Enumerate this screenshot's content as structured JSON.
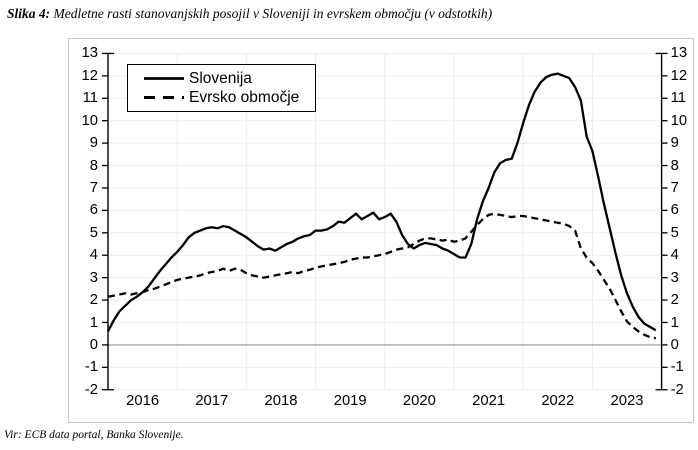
{
  "figure": {
    "title_label": "Slika 4:",
    "title_text": "Medletne rasti stanovanjskih posojil v Sloveniji in evrskem območju (v odstotkih)",
    "source": "Vir: ECB data portal, Banka Slovenije."
  },
  "chart_data": {
    "type": "line",
    "title": "Medletne rasti stanovanjskih posojil v Sloveniji in evrskem območju (v odstotkih)",
    "x_unit": "month",
    "x_start": "2016-01",
    "x_end": "2023-12",
    "year_labels": [
      "2016",
      "2017",
      "2018",
      "2019",
      "2020",
      "2021",
      "2022",
      "2023"
    ],
    "y_ticks": [
      -2,
      -1,
      0,
      1,
      2,
      3,
      4,
      5,
      6,
      7,
      8,
      9,
      10,
      11,
      12,
      13
    ],
    "ylim": [
      -2,
      13
    ],
    "grid": true,
    "zero_line": true,
    "legend_position": "top-left",
    "gridline_color": "#ececec",
    "zero_line_color": "#a6a6a6",
    "axis_color": "#000000",
    "series": [
      {
        "name": "Slovenija",
        "style": "solid",
        "color": "#000000",
        "values": [
          0.6,
          1.1,
          1.5,
          1.75,
          2.0,
          2.15,
          2.35,
          2.6,
          2.95,
          3.3,
          3.6,
          3.9,
          4.15,
          4.45,
          4.8,
          5.0,
          5.1,
          5.2,
          5.25,
          5.2,
          5.3,
          5.25,
          5.1,
          4.95,
          4.8,
          4.6,
          4.4,
          4.25,
          4.3,
          4.2,
          4.35,
          4.5,
          4.6,
          4.75,
          4.85,
          4.9,
          5.1,
          5.1,
          5.15,
          5.3,
          5.5,
          5.45,
          5.65,
          5.85,
          5.6,
          5.75,
          5.9,
          5.6,
          5.7,
          5.85,
          5.5,
          4.9,
          4.5,
          4.3,
          4.45,
          4.55,
          4.5,
          4.45,
          4.3,
          4.2,
          4.05,
          3.9,
          3.9,
          4.5,
          5.6,
          6.4,
          7.0,
          7.7,
          8.1,
          8.25,
          8.3,
          9.0,
          9.9,
          10.7,
          11.3,
          11.7,
          11.95,
          12.05,
          12.1,
          12.0,
          11.9,
          11.5,
          10.9,
          9.3,
          8.65,
          7.5,
          6.3,
          5.2,
          4.1,
          3.1,
          2.3,
          1.7,
          1.25,
          0.95,
          0.8,
          0.65
        ]
      },
      {
        "name": "Evrsko območje",
        "style": "dashed",
        "color": "#000000",
        "values": [
          2.15,
          2.2,
          2.25,
          2.3,
          2.25,
          2.3,
          2.35,
          2.45,
          2.5,
          2.6,
          2.7,
          2.8,
          2.9,
          2.95,
          3.0,
          3.05,
          3.1,
          3.2,
          3.25,
          3.3,
          3.4,
          3.3,
          3.4,
          3.35,
          3.2,
          3.1,
          3.05,
          3.0,
          3.05,
          3.1,
          3.15,
          3.2,
          3.25,
          3.2,
          3.3,
          3.35,
          3.45,
          3.5,
          3.55,
          3.6,
          3.65,
          3.7,
          3.8,
          3.85,
          3.9,
          3.9,
          3.95,
          4.0,
          4.05,
          4.15,
          4.25,
          4.3,
          4.35,
          4.5,
          4.65,
          4.75,
          4.75,
          4.7,
          4.65,
          4.7,
          4.6,
          4.65,
          4.75,
          5.05,
          5.35,
          5.6,
          5.8,
          5.85,
          5.8,
          5.75,
          5.7,
          5.75,
          5.75,
          5.7,
          5.65,
          5.6,
          5.55,
          5.5,
          5.45,
          5.4,
          5.3,
          5.1,
          4.3,
          3.9,
          3.65,
          3.3,
          2.9,
          2.5,
          2.0,
          1.5,
          1.05,
          0.8,
          0.6,
          0.45,
          0.35,
          0.3
        ]
      }
    ]
  }
}
